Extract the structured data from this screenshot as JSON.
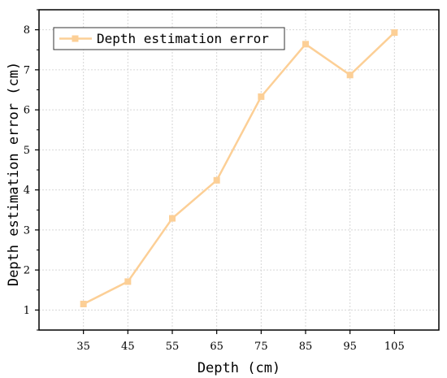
{
  "chart_data": {
    "type": "line",
    "xlabel": "Depth (cm)",
    "ylabel": "Depth estimation error (cm)",
    "x": [
      35,
      45,
      55,
      65,
      75,
      85,
      95,
      105
    ],
    "x_tick_labels": [
      "35",
      "45",
      "55",
      "65",
      "75",
      "85",
      "95",
      "105"
    ],
    "xlim": [
      25,
      115
    ],
    "ylim": [
      0.5,
      8.5
    ],
    "y_ticks": [
      1,
      2,
      3,
      4,
      5,
      6,
      7,
      8
    ],
    "y_tick_labels": [
      "1",
      "2",
      "3",
      "4",
      "5",
      "6",
      "7",
      "8"
    ],
    "grid": true,
    "legend_position": "top-left",
    "series": [
      {
        "name": "Depth estimation error",
        "values": [
          1.15,
          1.71,
          3.29,
          4.24,
          6.33,
          7.64,
          6.87,
          7.93
        ],
        "color": "#fccf96",
        "marker": "square"
      }
    ]
  }
}
